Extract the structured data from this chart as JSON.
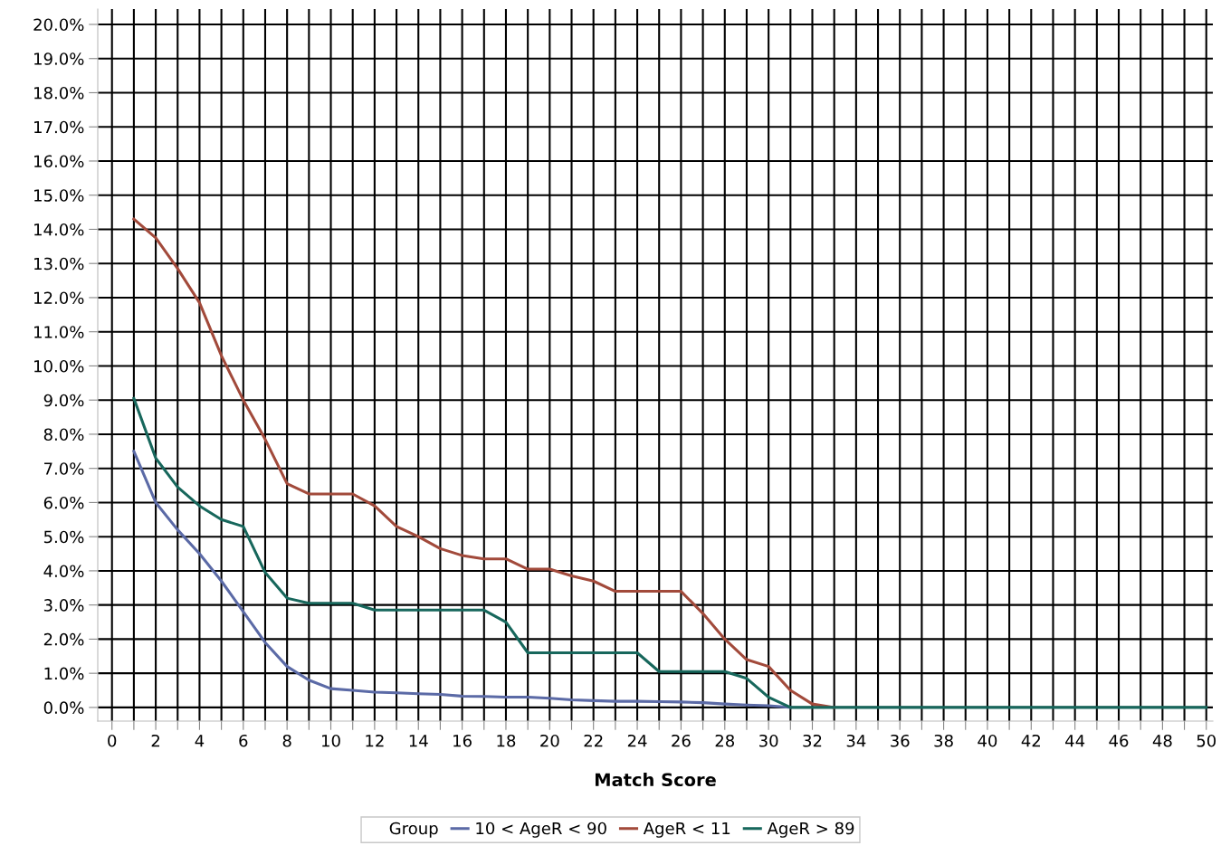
{
  "chart_data": {
    "type": "line",
    "xlabel": "Match Score",
    "legend_title": "Group",
    "legend": "bottom",
    "grid": true,
    "marker": "none",
    "line_style": "solid",
    "x": [
      1,
      2,
      3,
      4,
      5,
      6,
      7,
      8,
      9,
      10,
      11,
      12,
      13,
      14,
      15,
      16,
      17,
      18,
      19,
      20,
      21,
      22,
      23,
      24,
      25,
      26,
      27,
      28,
      29,
      30,
      31,
      32,
      33,
      34,
      35,
      36,
      37,
      38,
      39,
      40,
      41,
      42,
      43,
      44,
      45,
      46,
      47,
      48,
      49,
      50
    ],
    "xlim": [
      -0.65,
      50.3
    ],
    "xticks": [
      0,
      {
        "value": 1,
        "label": null
      },
      2,
      {
        "value": 3,
        "label": null
      },
      4,
      {
        "value": 5,
        "label": null
      },
      6,
      {
        "value": 7,
        "label": null
      },
      8,
      {
        "value": 9,
        "label": null
      },
      10,
      {
        "value": 11,
        "label": null
      },
      12,
      {
        "value": 13,
        "label": null
      },
      14,
      {
        "value": 15,
        "label": null
      },
      16,
      {
        "value": 17,
        "label": null
      },
      18,
      {
        "value": 19,
        "label": null
      },
      20,
      {
        "value": 21,
        "label": null
      },
      22,
      {
        "value": 23,
        "label": null
      },
      24,
      {
        "value": 25,
        "label": null
      },
      26,
      {
        "value": 27,
        "label": null
      },
      28,
      {
        "value": 29,
        "label": null
      },
      30,
      {
        "value": 31,
        "label": null
      },
      32,
      {
        "value": 33,
        "label": null
      },
      34,
      {
        "value": 35,
        "label": null
      },
      36,
      {
        "value": 37,
        "label": null
      },
      38,
      {
        "value": 39,
        "label": null
      },
      40,
      {
        "value": 41,
        "label": null
      },
      42,
      {
        "value": 43,
        "label": null
      },
      44,
      {
        "value": 45,
        "label": null
      },
      46,
      {
        "value": 47,
        "label": null
      },
      48,
      {
        "value": 49,
        "label": null
      },
      50
    ],
    "ylim": [
      -0.4,
      20.45
    ],
    "yticks": [
      {
        "value": 0,
        "label": "0.0%"
      },
      {
        "value": 1,
        "label": "1.0%"
      },
      {
        "value": 2,
        "label": "2.0%"
      },
      {
        "value": 3,
        "label": "3.0%"
      },
      {
        "value": 4,
        "label": "4.0%"
      },
      {
        "value": 5,
        "label": "5.0%"
      },
      {
        "value": 6,
        "label": "6.0%"
      },
      {
        "value": 7,
        "label": "7.0%"
      },
      {
        "value": 8,
        "label": "8.0%"
      },
      {
        "value": 9,
        "label": "9.0%"
      },
      {
        "value": 10,
        "label": "10.0%"
      },
      {
        "value": 11,
        "label": "11.0%"
      },
      {
        "value": 12,
        "label": "12.0%"
      },
      {
        "value": 13,
        "label": "13.0%"
      },
      {
        "value": 14,
        "label": "14.0%"
      },
      {
        "value": 15,
        "label": "15.0%"
      },
      {
        "value": 16,
        "label": "16.0%"
      },
      {
        "value": 17,
        "label": "17.0%"
      },
      {
        "value": 18,
        "label": "18.0%"
      },
      {
        "value": 19,
        "label": "19.0%"
      },
      {
        "value": 20,
        "label": "20.0%"
      }
    ],
    "series": [
      {
        "name": "10 < AgeR < 90",
        "color": "#5b6aa6",
        "values": [
          7.5,
          6.0,
          5.2,
          4.5,
          3.7,
          2.8,
          1.9,
          1.2,
          0.8,
          0.55,
          0.5,
          0.45,
          0.43,
          0.4,
          0.38,
          0.33,
          0.32,
          0.3,
          0.3,
          0.27,
          0.22,
          0.2,
          0.18,
          0.18,
          0.17,
          0.16,
          0.14,
          0.1,
          0.07,
          0.05,
          0,
          null,
          null,
          null,
          null,
          null,
          null,
          null,
          null,
          null,
          null,
          null,
          null,
          null,
          null,
          null,
          null,
          null,
          null,
          null
        ]
      },
      {
        "name": "AgeR < 11",
        "color": "#a24a3b",
        "values": [
          14.3,
          13.75,
          12.85,
          11.85,
          10.3,
          9.0,
          7.85,
          6.55,
          6.25,
          6.25,
          6.25,
          5.9,
          5.3,
          5.0,
          4.65,
          4.45,
          4.35,
          4.35,
          4.05,
          4.05,
          3.85,
          3.7,
          3.4,
          3.4,
          3.4,
          3.4,
          2.75,
          2.0,
          1.4,
          1.2,
          0.5,
          0.1,
          0,
          null,
          null,
          null,
          null,
          null,
          null,
          null,
          null,
          null,
          null,
          null,
          null,
          null,
          null,
          null,
          null,
          null
        ]
      },
      {
        "name": "AgeR > 89",
        "color": "#17675c",
        "values": [
          9.05,
          7.3,
          6.45,
          5.9,
          5.5,
          5.3,
          3.95,
          3.2,
          3.05,
          3.05,
          3.05,
          2.85,
          2.85,
          2.85,
          2.85,
          2.85,
          2.85,
          2.5,
          1.6,
          1.6,
          1.6,
          1.6,
          1.6,
          1.6,
          1.05,
          1.05,
          1.05,
          1.05,
          0.85,
          0.3,
          0,
          0,
          0,
          0,
          0,
          0,
          0,
          0,
          0,
          0,
          0,
          0,
          0,
          0,
          0,
          0,
          0,
          0,
          0,
          0
        ]
      }
    ]
  }
}
